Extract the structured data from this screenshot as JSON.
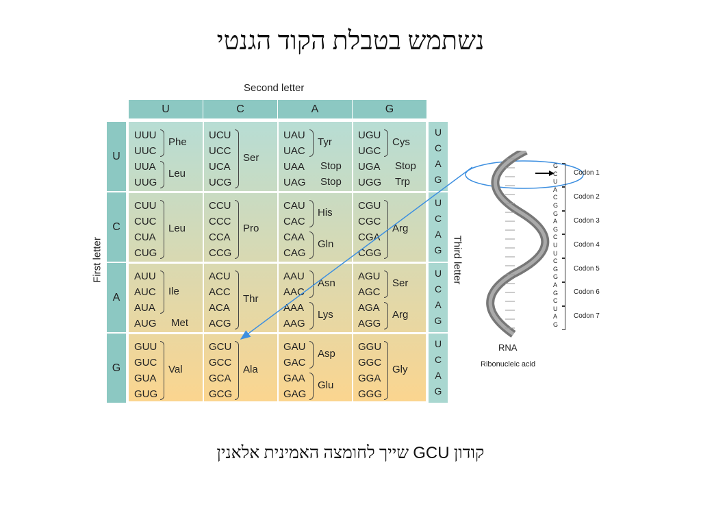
{
  "title": "נשתמש בטבלת הקוד הגנטי",
  "caption": {
    "before": "קודון",
    "codon": "GCU",
    "after": "שייך לחומצה האמינית אלאנין"
  },
  "table": {
    "second_letter_label": "Second letter",
    "first_letter_label": "First letter",
    "third_letter_label": "Third letter",
    "bases": [
      "U",
      "C",
      "A",
      "G"
    ],
    "third_bases": [
      "U",
      "C",
      "A",
      "G"
    ],
    "rows": [
      {
        "first": "U",
        "cells": [
          {
            "codons": [
              "UUU",
              "UUC",
              "UUA",
              "UUG"
            ],
            "groups": [
              {
                "label": "Phe",
                "start": 0,
                "end": 1
              },
              {
                "label": "Leu",
                "start": 2,
                "end": 3
              }
            ]
          },
          {
            "codons": [
              "UCU",
              "UCC",
              "UCA",
              "UCG"
            ],
            "groups": [
              {
                "label": "Ser",
                "start": 0,
                "end": 3
              }
            ]
          },
          {
            "codons": [
              "UAU",
              "UAC",
              "UAA",
              "UAG"
            ],
            "groups": [
              {
                "label": "Tyr",
                "start": 0,
                "end": 1
              },
              {
                "label": "Stop",
                "start": 2,
                "end": 2,
                "nobrace": true
              },
              {
                "label": "Stop",
                "start": 3,
                "end": 3,
                "nobrace": true
              }
            ]
          },
          {
            "codons": [
              "UGU",
              "UGC",
              "UGA",
              "UGG"
            ],
            "groups": [
              {
                "label": "Cys",
                "start": 0,
                "end": 1
              },
              {
                "label": "Stop",
                "start": 2,
                "end": 2,
                "nobrace": true
              },
              {
                "label": "Trp",
                "start": 3,
                "end": 3,
                "nobrace": true
              }
            ]
          }
        ]
      },
      {
        "first": "C",
        "cells": [
          {
            "codons": [
              "CUU",
              "CUC",
              "CUA",
              "CUG"
            ],
            "groups": [
              {
                "label": "Leu",
                "start": 0,
                "end": 3
              }
            ]
          },
          {
            "codons": [
              "CCU",
              "CCC",
              "CCA",
              "CCG"
            ],
            "groups": [
              {
                "label": "Pro",
                "start": 0,
                "end": 3
              }
            ]
          },
          {
            "codons": [
              "CAU",
              "CAC",
              "CAA",
              "CAG"
            ],
            "groups": [
              {
                "label": "His",
                "start": 0,
                "end": 1
              },
              {
                "label": "Gln",
                "start": 2,
                "end": 3
              }
            ]
          },
          {
            "codons": [
              "CGU",
              "CGC",
              "CGA",
              "CGG"
            ],
            "groups": [
              {
                "label": "Arg",
                "start": 0,
                "end": 3
              }
            ]
          }
        ]
      },
      {
        "first": "A",
        "cells": [
          {
            "codons": [
              "AUU",
              "AUC",
              "AUA",
              "AUG"
            ],
            "groups": [
              {
                "label": "Ile",
                "start": 0,
                "end": 2
              },
              {
                "label": "Met",
                "start": 3,
                "end": 3,
                "nobrace": true
              }
            ]
          },
          {
            "codons": [
              "ACU",
              "ACC",
              "ACA",
              "ACG"
            ],
            "groups": [
              {
                "label": "Thr",
                "start": 0,
                "end": 3
              }
            ]
          },
          {
            "codons": [
              "AAU",
              "AAC",
              "AAA",
              "AAG"
            ],
            "groups": [
              {
                "label": "Asn",
                "start": 0,
                "end": 1
              },
              {
                "label": "Lys",
                "start": 2,
                "end": 3
              }
            ]
          },
          {
            "codons": [
              "AGU",
              "AGC",
              "AGA",
              "AGG"
            ],
            "groups": [
              {
                "label": "Ser",
                "start": 0,
                "end": 1
              },
              {
                "label": "Arg",
                "start": 2,
                "end": 3
              }
            ]
          }
        ]
      },
      {
        "first": "G",
        "cells": [
          {
            "codons": [
              "GUU",
              "GUC",
              "GUA",
              "GUG"
            ],
            "groups": [
              {
                "label": "Val",
                "start": 0,
                "end": 3
              }
            ]
          },
          {
            "codons": [
              "GCU",
              "GCC",
              "GCA",
              "GCG"
            ],
            "groups": [
              {
                "label": "Ala",
                "start": 0,
                "end": 3
              }
            ]
          },
          {
            "codons": [
              "GAU",
              "GAC",
              "GAA",
              "GAG"
            ],
            "groups": [
              {
                "label": "Asp",
                "start": 0,
                "end": 1
              },
              {
                "label": "Glu",
                "start": 2,
                "end": 3
              }
            ]
          },
          {
            "codons": [
              "GGU",
              "GGC",
              "GGA",
              "GGG"
            ],
            "groups": [
              {
                "label": "Gly",
                "start": 0,
                "end": 3
              }
            ]
          }
        ]
      }
    ]
  },
  "rna": {
    "label": "RNA",
    "sublabel": "Ribonucleic acid",
    "strand": [
      "G",
      "C",
      "U",
      "A",
      "C",
      "G",
      "G",
      "A",
      "G",
      "C",
      "U",
      "U",
      "C",
      "G",
      "G",
      "A",
      "G",
      "C",
      "U",
      "A",
      "G"
    ],
    "codons": [
      "Codon 1",
      "Codon 2",
      "Codon 3",
      "Codon 4",
      "Codon 5",
      "Codon 6",
      "Codon 7"
    ]
  },
  "colors": {
    "header": "#8cc8c2",
    "table_top": "#b7ddd4",
    "table_bottom": "#fbd58f",
    "arrow": "#3d8fe0"
  }
}
